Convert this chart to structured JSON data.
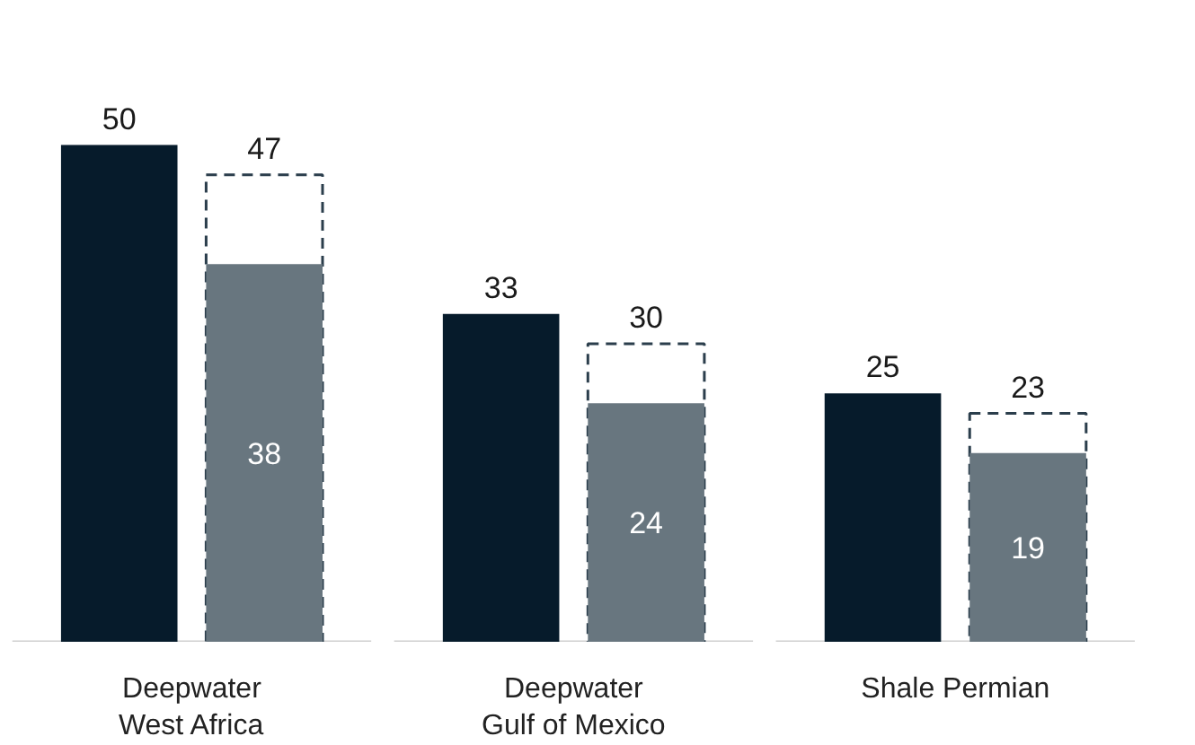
{
  "chart_data": {
    "type": "bar",
    "categories": [
      "Deepwater West Africa",
      "Deepwater Gulf of Mexico",
      "Shale Permian"
    ],
    "series": [
      {
        "color": "#061b2b",
        "values": [
          50,
          33,
          25
        ],
        "value_labels": [
          "50",
          "33",
          "25"
        ]
      },
      {
        "color": "#2b3e4c",
        "line_style": "dashed",
        "values": [
          47,
          30,
          23
        ],
        "value_labels": [
          "47",
          "30",
          "23"
        ]
      },
      {
        "color": "#68767f",
        "values": [
          38,
          24,
          19
        ],
        "value_labels": [
          "38",
          "24",
          "19"
        ]
      }
    ],
    "grid": false,
    "legend": false
  }
}
